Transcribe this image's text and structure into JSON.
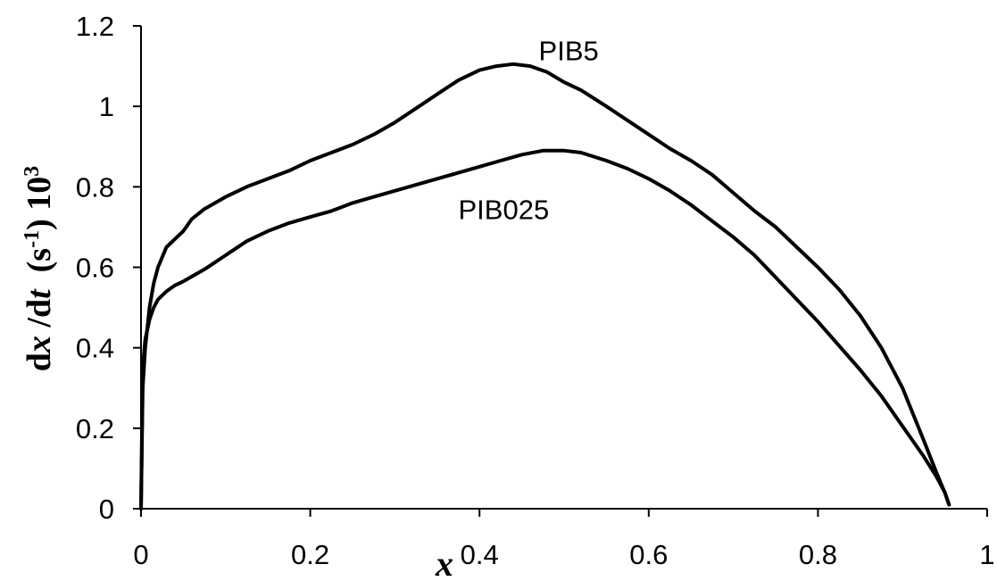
{
  "chart_data": {
    "type": "line",
    "xlabel": "x",
    "ylabel": {
      "d1": "d",
      "x": "x",
      "slash": " /d",
      "t": "t",
      "unit_open": "  (s",
      "unit_exp": "-1",
      "unit_close": ") 10",
      "pow": "3"
    },
    "xlim": [
      0,
      1
    ],
    "ylim": [
      0,
      1.2
    ],
    "x_ticks": [
      {
        "value": 0,
        "label": "0"
      },
      {
        "value": 0.2,
        "label": "0.2"
      },
      {
        "value": 0.4,
        "label": "0.4"
      },
      {
        "value": 0.6,
        "label": "0.6"
      },
      {
        "value": 0.8,
        "label": "0.8"
      },
      {
        "value": 1,
        "label": "1"
      }
    ],
    "y_ticks": [
      {
        "value": 0,
        "label": "0"
      },
      {
        "value": 0.2,
        "label": "0.2"
      },
      {
        "value": 0.4,
        "label": "0.4"
      },
      {
        "value": 0.6,
        "label": "0.6"
      },
      {
        "value": 0.8,
        "label": "0.8"
      },
      {
        "value": 1,
        "label": "1"
      },
      {
        "value": 1.2,
        "label": "1.2"
      }
    ],
    "grid": false,
    "legend": "none",
    "series": [
      {
        "name": "PIB5",
        "x": [
          0,
          0.002,
          0.005,
          0.01,
          0.015,
          0.02,
          0.03,
          0.04,
          0.05,
          0.06,
          0.075,
          0.1,
          0.125,
          0.15,
          0.175,
          0.2,
          0.225,
          0.25,
          0.275,
          0.3,
          0.325,
          0.35,
          0.375,
          0.4,
          0.42,
          0.44,
          0.46,
          0.48,
          0.5,
          0.52,
          0.55,
          0.575,
          0.6,
          0.625,
          0.65,
          0.675,
          0.7,
          0.725,
          0.75,
          0.775,
          0.8,
          0.825,
          0.85,
          0.875,
          0.9,
          0.925,
          0.94,
          0.95,
          0.955
        ],
        "y": [
          0,
          0.3,
          0.4,
          0.5,
          0.56,
          0.6,
          0.65,
          0.67,
          0.69,
          0.72,
          0.745,
          0.775,
          0.8,
          0.82,
          0.84,
          0.865,
          0.885,
          0.905,
          0.93,
          0.96,
          0.995,
          1.03,
          1.065,
          1.09,
          1.1,
          1.105,
          1.1,
          1.085,
          1.06,
          1.04,
          1.0,
          0.965,
          0.93,
          0.895,
          0.865,
          0.83,
          0.785,
          0.74,
          0.7,
          0.65,
          0.6,
          0.545,
          0.48,
          0.4,
          0.3,
          0.17,
          0.09,
          0.04,
          0.01
        ]
      },
      {
        "name": "PIB025",
        "x": [
          0,
          0.002,
          0.005,
          0.01,
          0.015,
          0.02,
          0.03,
          0.04,
          0.05,
          0.075,
          0.1,
          0.125,
          0.15,
          0.175,
          0.2,
          0.225,
          0.25,
          0.275,
          0.3,
          0.325,
          0.35,
          0.375,
          0.4,
          0.425,
          0.45,
          0.475,
          0.5,
          0.52,
          0.55,
          0.575,
          0.6,
          0.625,
          0.65,
          0.675,
          0.7,
          0.725,
          0.75,
          0.775,
          0.8,
          0.825,
          0.85,
          0.875,
          0.9,
          0.925,
          0.94,
          0.95,
          0.955
        ],
        "y": [
          0,
          0.35,
          0.42,
          0.47,
          0.5,
          0.52,
          0.54,
          0.555,
          0.565,
          0.595,
          0.63,
          0.665,
          0.69,
          0.71,
          0.725,
          0.74,
          0.76,
          0.775,
          0.79,
          0.805,
          0.82,
          0.835,
          0.85,
          0.865,
          0.88,
          0.89,
          0.89,
          0.885,
          0.865,
          0.845,
          0.82,
          0.79,
          0.755,
          0.715,
          0.675,
          0.63,
          0.575,
          0.52,
          0.465,
          0.405,
          0.345,
          0.28,
          0.205,
          0.13,
          0.08,
          0.04,
          0.01
        ]
      }
    ],
    "annotations": [
      {
        "text": "PIB5",
        "series": "PIB5",
        "x": 0.47,
        "y": 1.115
      },
      {
        "text": "PIB025",
        "series": "PIB025",
        "x": 0.375,
        "y": 0.72
      }
    ]
  }
}
